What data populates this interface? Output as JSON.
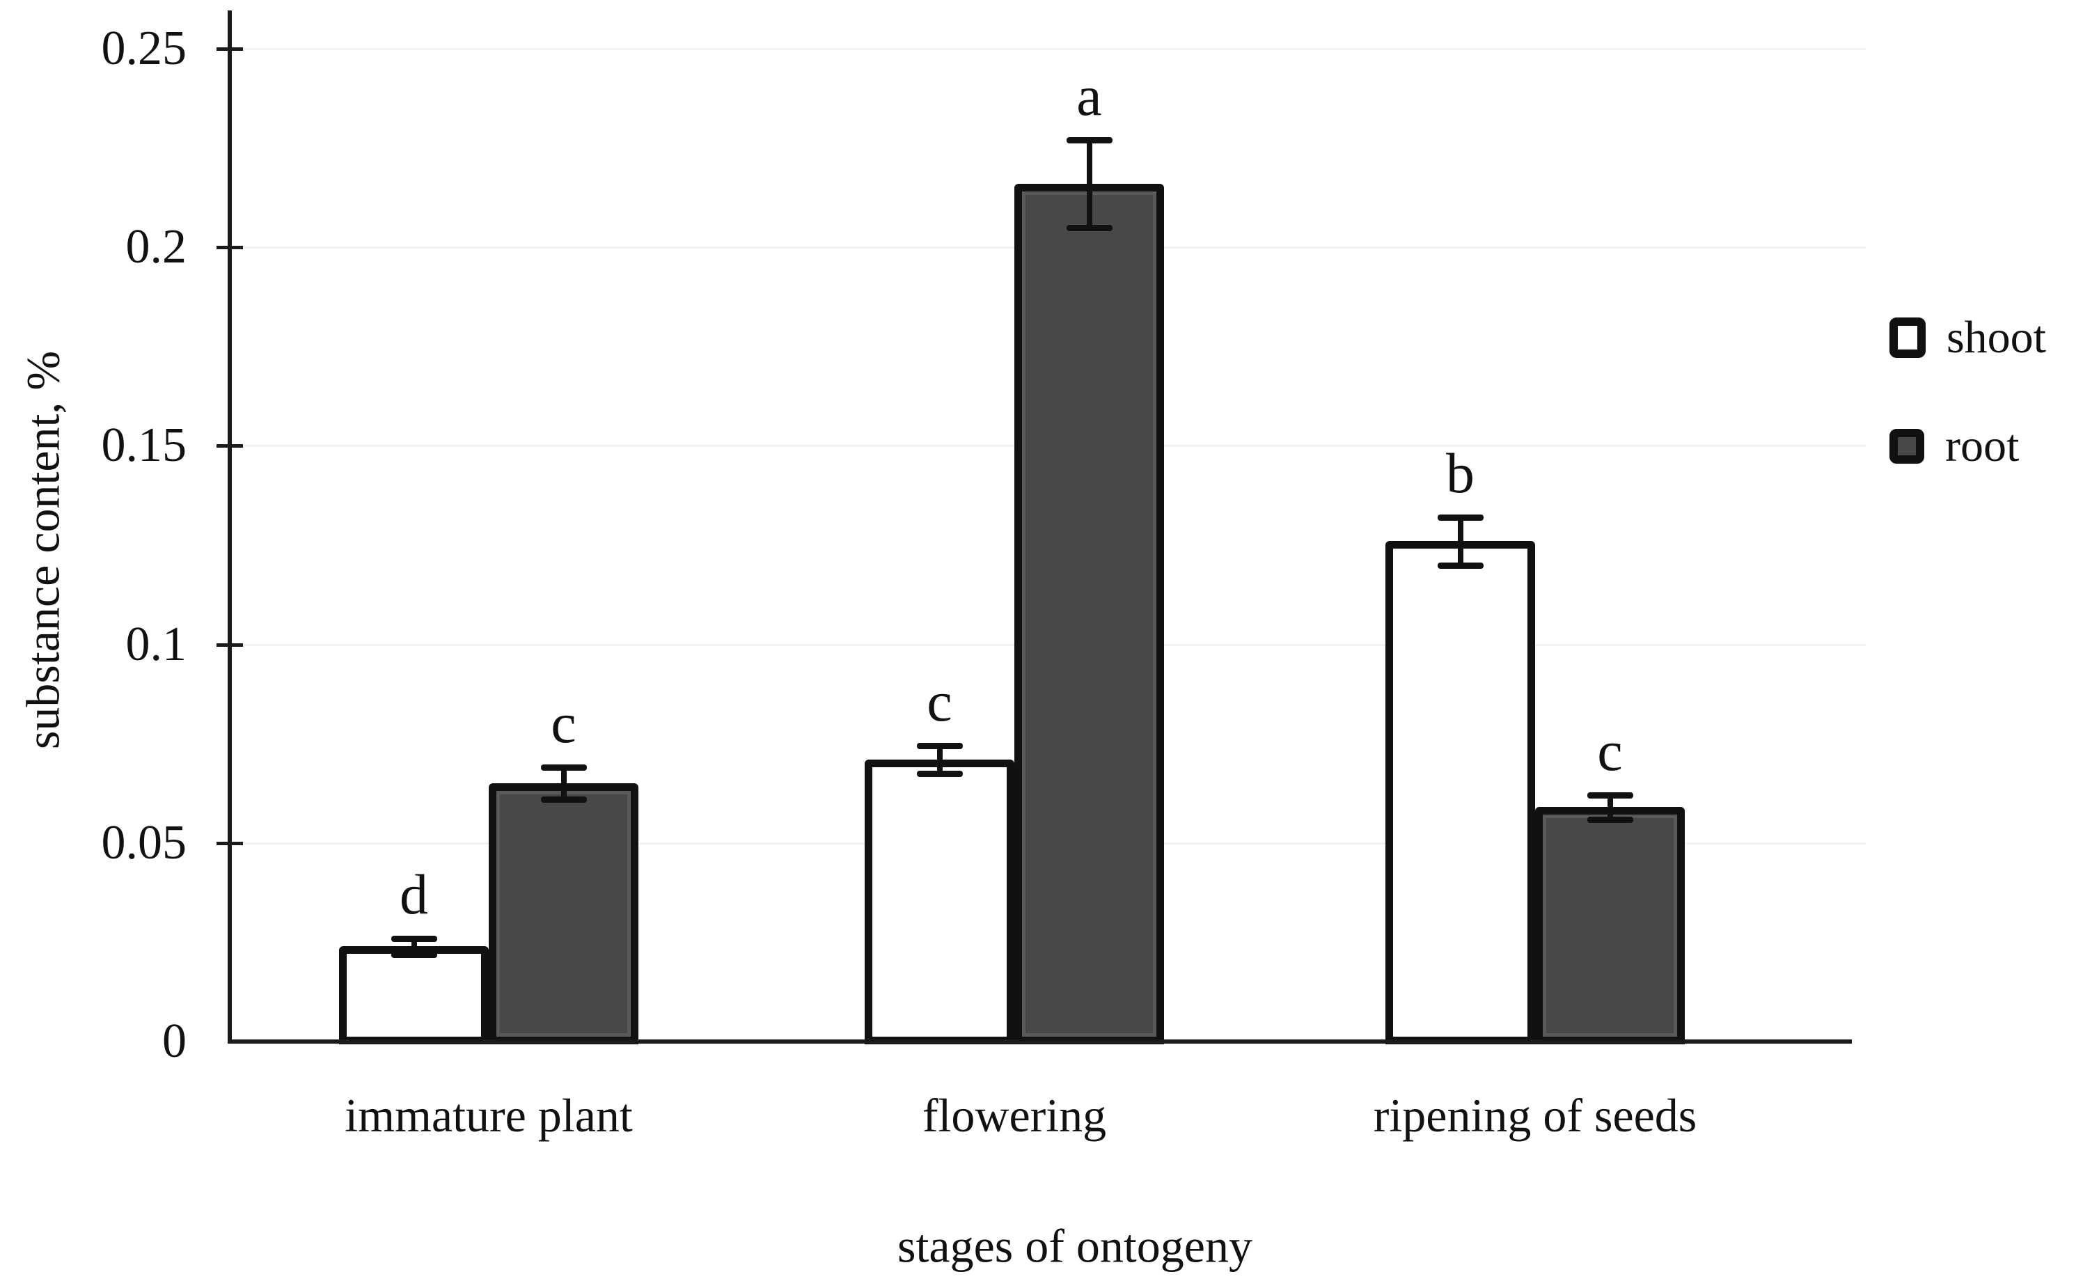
{
  "chart_data": {
    "type": "bar",
    "title": "",
    "xlabel": "stages of ontogeny",
    "ylabel": "substance content, %",
    "categories": [
      "immature plant",
      "flowering",
      "ripening of seeds"
    ],
    "series": [
      {
        "name": "shoot",
        "fill": "#ffffff",
        "values": [
          0.024,
          0.071,
          0.126
        ],
        "errors": [
          0.002,
          0.0035,
          0.006
        ],
        "sig_letters": [
          "d",
          "c",
          "b"
        ]
      },
      {
        "name": "root",
        "fill": "#484848",
        "values": [
          0.065,
          0.216,
          0.059
        ],
        "errors": [
          0.004,
          0.011,
          0.003
        ],
        "sig_letters": [
          "c",
          "a",
          "c"
        ]
      }
    ],
    "ylim": [
      0,
      0.25
    ],
    "yticks": [
      0,
      0.05,
      0.1,
      0.15,
      0.2,
      0.25
    ],
    "ytick_labels": [
      "0",
      "0.05",
      "0.1",
      "0.15",
      "0.2",
      "0.25"
    ],
    "grid": true,
    "legend_position": "right",
    "colors": {
      "axis": "#1a1a1a",
      "bar_border": "#111111",
      "root_fill": "#484848",
      "shoot_fill": "#ffffff",
      "gridline": "#f2f2f2"
    }
  }
}
